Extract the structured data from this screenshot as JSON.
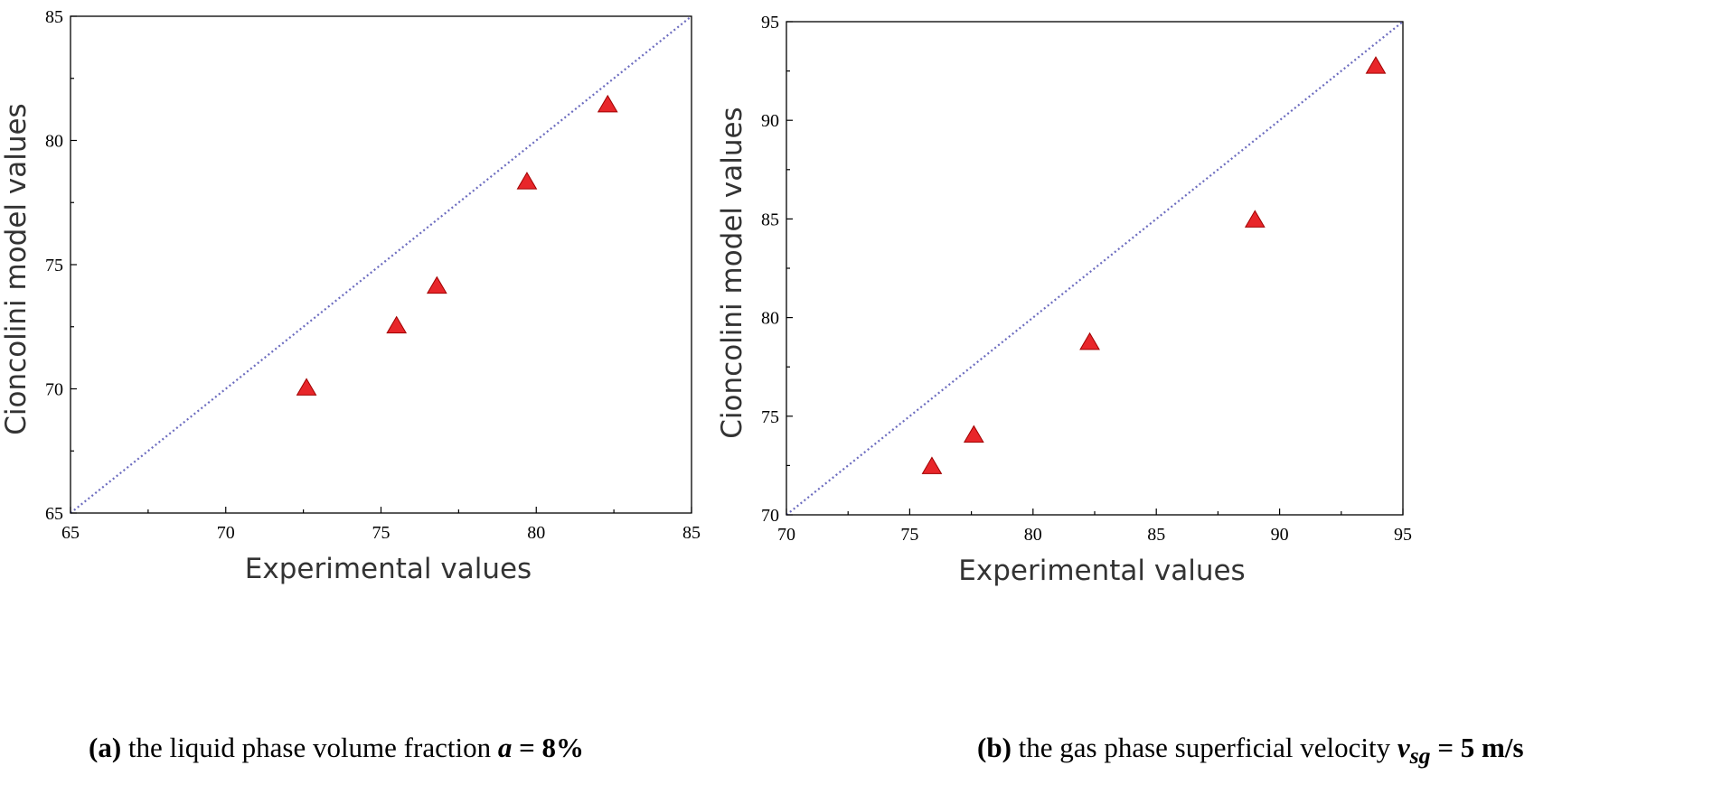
{
  "chart_data": [
    {
      "type": "scatter",
      "title": "",
      "xlabel": "Experimental values",
      "ylabel": "Cioncolini model values",
      "xlim": [
        65,
        85
      ],
      "ylim": [
        65,
        85
      ],
      "xticks": [
        "65",
        "70",
        "75",
        "80",
        "85"
      ],
      "yticks": [
        "65",
        "70",
        "75",
        "80",
        "85"
      ],
      "reference_line": "y = x",
      "marker": "triangle",
      "marker_color": "#e8262a",
      "series": [
        {
          "name": "data",
          "x": [
            72.6,
            75.5,
            76.8,
            79.7,
            82.3
          ],
          "y": [
            70.0,
            72.5,
            74.1,
            78.3,
            81.4
          ]
        }
      ],
      "caption": {
        "prefix": "(a)",
        "text": " the liquid phase volume fraction ",
        "symbol": "a",
        "suffix": " = 8%"
      }
    },
    {
      "type": "scatter",
      "title": "",
      "xlabel": "Experimental values",
      "ylabel": "Cioncolini model values",
      "xlim": [
        70,
        95
      ],
      "ylim": [
        70,
        95
      ],
      "xticks": [
        "70",
        "75",
        "80",
        "85",
        "90",
        "95"
      ],
      "yticks": [
        "70",
        "75",
        "80",
        "85",
        "90",
        "95"
      ],
      "reference_line": "y = x",
      "marker": "triangle",
      "marker_color": "#e8262a",
      "series": [
        {
          "name": "data",
          "x": [
            75.9,
            77.6,
            82.3,
            89.0,
            93.9
          ],
          "y": [
            72.4,
            74.0,
            78.7,
            84.9,
            92.7
          ]
        }
      ],
      "caption": {
        "prefix": "(b)",
        "text": " the gas phase superficial velocity ",
        "symbol": "v",
        "subscript": "sg",
        "suffix": " = 5 m/s"
      }
    }
  ]
}
